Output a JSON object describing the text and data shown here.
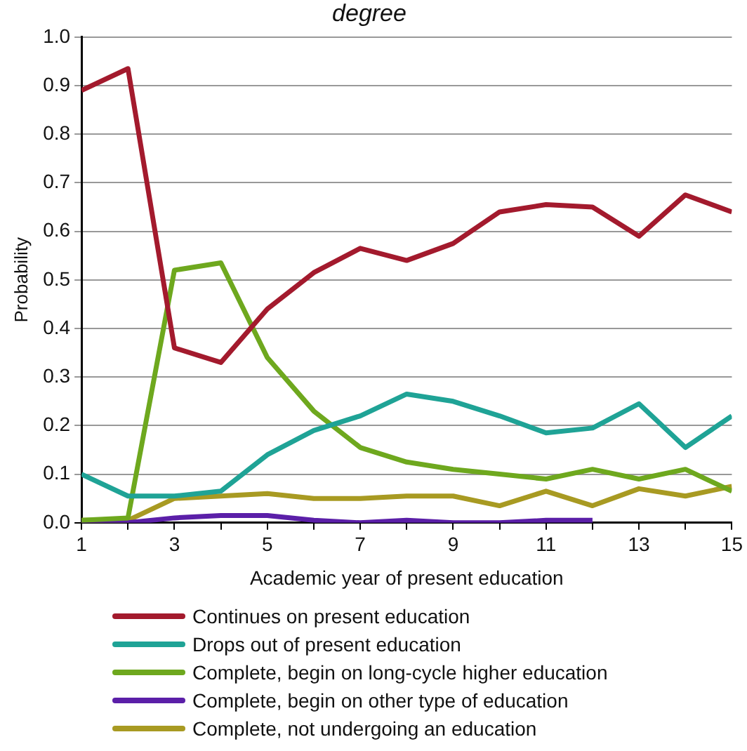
{
  "chart_data": {
    "type": "line",
    "title": "degree",
    "xlabel": "Academic year of present education",
    "ylabel": "Probability",
    "x": [
      1,
      2,
      3,
      4,
      5,
      6,
      7,
      8,
      9,
      10,
      11,
      12,
      13,
      14,
      15
    ],
    "xlim": [
      1,
      15
    ],
    "xticks": [
      1,
      {
        "value": 2,
        "label": null
      },
      3,
      {
        "value": 4,
        "label": null
      },
      5,
      {
        "value": 6,
        "label": null
      },
      7,
      {
        "value": 8,
        "label": null
      },
      9,
      {
        "value": 10,
        "label": null
      },
      11,
      {
        "value": 12,
        "label": null
      },
      13,
      {
        "value": 14,
        "label": null
      },
      15
    ],
    "ylim": [
      0,
      1
    ],
    "yticks": [
      {
        "value": 0,
        "label": "0.0"
      },
      0.1,
      0.2,
      0.3,
      0.4,
      0.5,
      0.6,
      0.7,
      0.8,
      0.9,
      {
        "value": 1,
        "label": "1.0"
      }
    ],
    "grid": "y",
    "legend": "bottom",
    "marker": "none",
    "line_style": "solid",
    "series": [
      {
        "name": "Continues on present education",
        "color": "#a31a2d",
        "values": [
          0.89,
          0.935,
          0.36,
          0.33,
          0.44,
          0.515,
          0.565,
          0.54,
          0.575,
          0.64,
          0.655,
          0.65,
          0.59,
          0.675,
          0.64
        ]
      },
      {
        "name": "Drops out of present education",
        "color": "#1fa396",
        "values": [
          0.1,
          0.055,
          0.055,
          0.065,
          0.14,
          0.19,
          0.22,
          0.265,
          0.25,
          0.22,
          0.185,
          0.195,
          0.245,
          0.155,
          0.22
        ]
      },
      {
        "name": "Complete, begin on long-cycle higher education",
        "color": "#6ea81e",
        "values": [
          0.005,
          0.01,
          0.52,
          0.535,
          0.34,
          0.23,
          0.155,
          0.125,
          0.11,
          0.1,
          0.09,
          0.11,
          0.09,
          0.11,
          0.065
        ]
      },
      {
        "name": "Complete, begin on other type of education",
        "color": "#5b1fa8",
        "values": [
          0,
          0,
          0.01,
          0.015,
          0.015,
          0.005,
          0,
          0.005,
          0,
          0,
          0.005,
          0.005,
          null,
          null,
          null
        ]
      },
      {
        "name": "Complete, not undergoing an education",
        "color": "#a89a22",
        "values": [
          0.005,
          0.005,
          0.05,
          0.055,
          0.06,
          0.05,
          0.05,
          0.055,
          0.055,
          0.035,
          0.065,
          0.035,
          0.07,
          0.055,
          0.075
        ]
      }
    ]
  }
}
